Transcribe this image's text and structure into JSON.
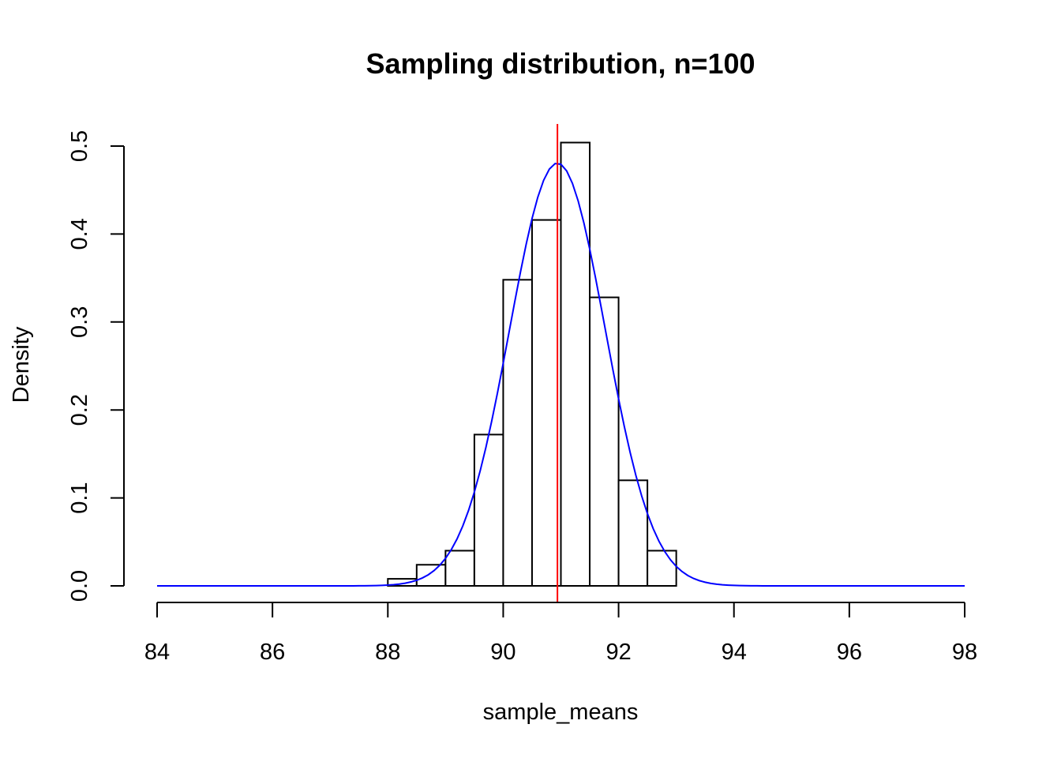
{
  "chart_data": {
    "type": "histogram",
    "title": "Sampling distribution, n=100",
    "xlabel": "sample_means",
    "ylabel": "Density",
    "xlim": [
      84,
      98
    ],
    "ylim": [
      0,
      0.5
    ],
    "x_ticks": [
      "84",
      "86",
      "88",
      "90",
      "92",
      "94",
      "96",
      "98"
    ],
    "y_ticks": [
      "0.0",
      "0.1",
      "0.2",
      "0.3",
      "0.4",
      "0.5"
    ],
    "grid": false,
    "bins": [
      {
        "x0": 88.0,
        "x1": 88.5,
        "density": 0.008
      },
      {
        "x0": 88.5,
        "x1": 89.0,
        "density": 0.024
      },
      {
        "x0": 89.0,
        "x1": 89.5,
        "density": 0.04
      },
      {
        "x0": 89.5,
        "x1": 90.0,
        "density": 0.172
      },
      {
        "x0": 90.0,
        "x1": 90.5,
        "density": 0.348
      },
      {
        "x0": 90.5,
        "x1": 91.0,
        "density": 0.416
      },
      {
        "x0": 91.0,
        "x1": 91.5,
        "density": 0.504
      },
      {
        "x0": 91.5,
        "x1": 92.0,
        "density": 0.328
      },
      {
        "x0": 92.0,
        "x1": 92.5,
        "density": 0.12
      },
      {
        "x0": 92.5,
        "x1": 93.0,
        "density": 0.04
      }
    ],
    "normal_curve": {
      "mean": 90.94,
      "sd": 0.83,
      "x_from": 84,
      "x_to": 98,
      "color": "#0000FF"
    },
    "mean_line": {
      "x": 90.94,
      "color": "#FF0000"
    },
    "bar_fill": "#FFFFFF",
    "bar_stroke": "#000000"
  }
}
